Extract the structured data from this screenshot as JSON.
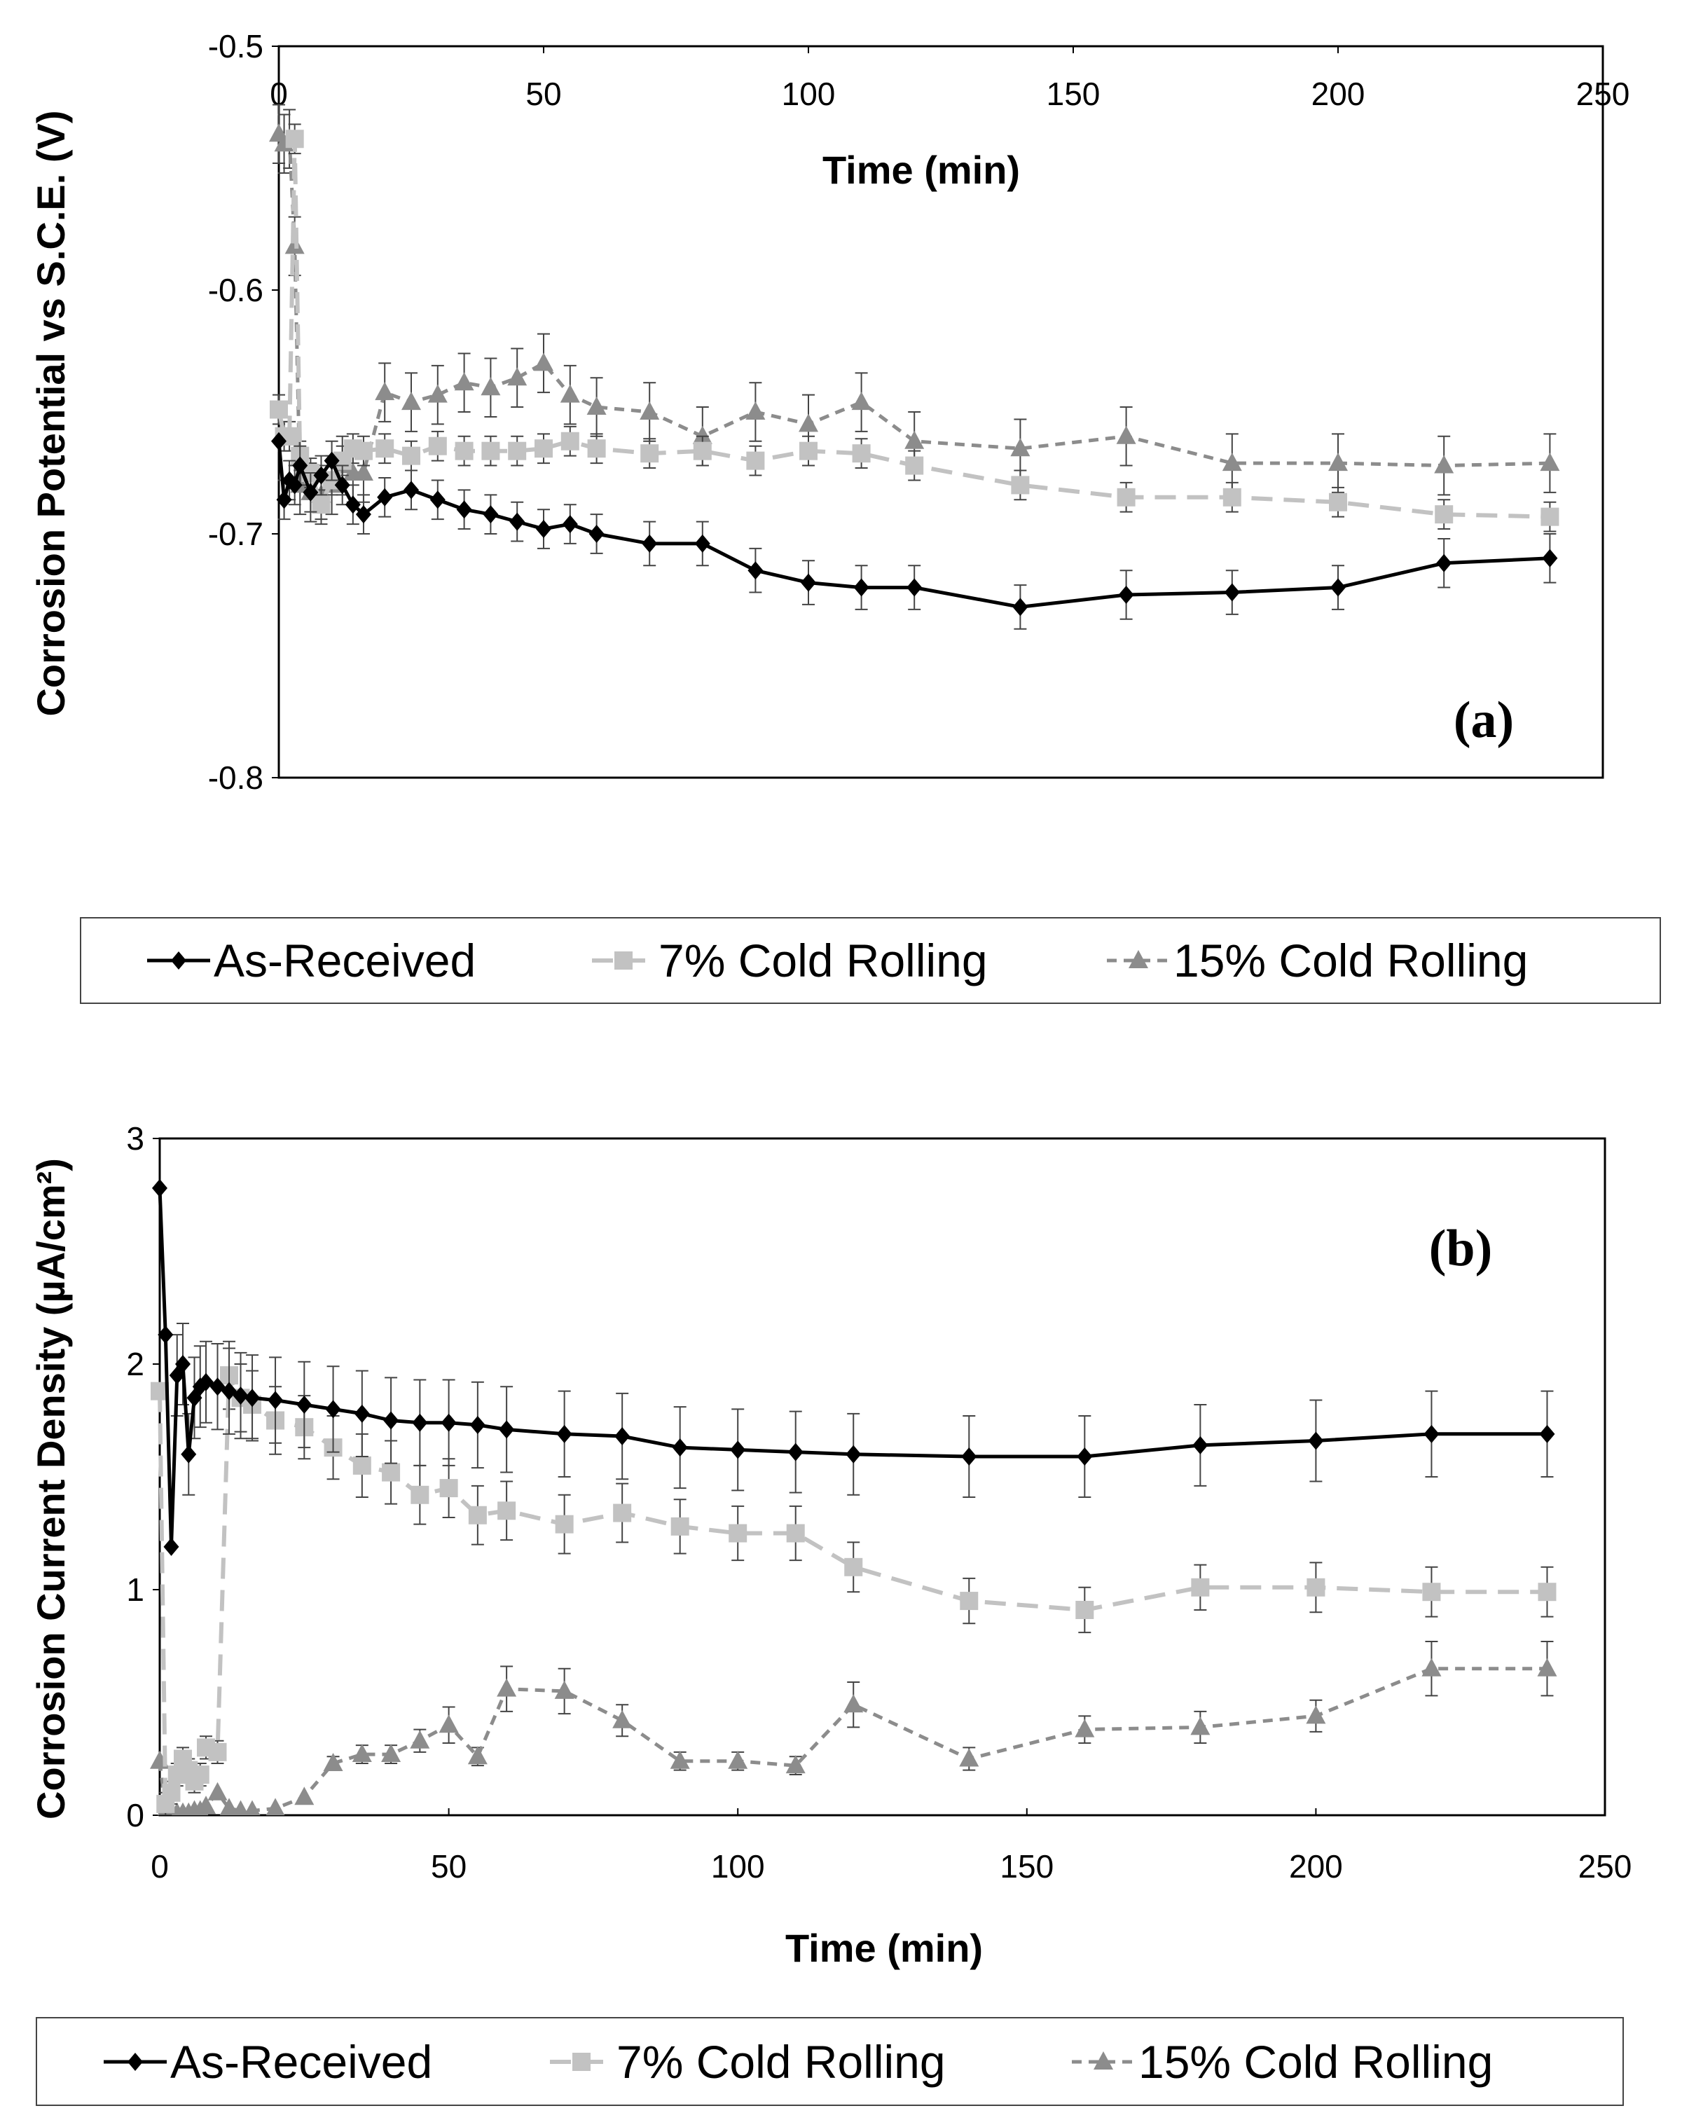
{
  "chart_data": [
    {
      "type": "line",
      "panel_label": "(a)",
      "xlabel": "Time (min)",
      "ylabel": "Corrosion Potential vs S.C.E. (V)",
      "xlim": [
        0,
        250
      ],
      "ylim": [
        -0.8,
        -0.5
      ],
      "x_ticks": [
        0,
        50,
        100,
        150,
        200,
        250
      ],
      "y_ticks": [
        -0.5,
        -0.6,
        -0.7,
        -0.8
      ],
      "x_tick_labels": [
        "0",
        "50",
        "100",
        "150",
        "200",
        "250"
      ],
      "y_tick_labels": [
        "-0.5",
        "-0.6",
        "-0.7",
        "-0.8"
      ],
      "x_axis_position": "top",
      "grid": false,
      "legend_position": "bottom",
      "series": [
        {
          "name": "As-Received",
          "color": "#000000",
          "marker": "diamond",
          "dash": "solid",
          "x": [
            0,
            1,
            2,
            3,
            4,
            6,
            8,
            10,
            12,
            14,
            16,
            20,
            25,
            30,
            35,
            40,
            45,
            50,
            55,
            60,
            70,
            80,
            90,
            100,
            110,
            120,
            140,
            160,
            180,
            200,
            220,
            240
          ],
          "values": [
            -0.662,
            -0.686,
            -0.678,
            -0.68,
            -0.672,
            -0.683,
            -0.676,
            -0.67,
            -0.68,
            -0.688,
            -0.692,
            -0.685,
            -0.682,
            -0.686,
            -0.69,
            -0.692,
            -0.695,
            -0.698,
            -0.696,
            -0.7,
            -0.704,
            -0.704,
            -0.715,
            -0.72,
            -0.722,
            -0.722,
            -0.73,
            -0.725,
            -0.724,
            -0.722,
            -0.712,
            -0.71
          ],
          "error": [
            0,
            0.008,
            0.008,
            0.008,
            0.008,
            0.008,
            0.008,
            0.008,
            0.008,
            0.008,
            0.008,
            0.008,
            0.008,
            0.008,
            0.008,
            0.008,
            0.008,
            0.008,
            0.008,
            0.008,
            0.009,
            0.009,
            0.009,
            0.009,
            0.009,
            0.009,
            0.009,
            0.01,
            0.009,
            0.009,
            0.01,
            0.01
          ]
        },
        {
          "name": "7% Cold Rolling",
          "color": "#c2c2c2",
          "marker": "square",
          "dash": "long-dash",
          "x": [
            0,
            1,
            2,
            3,
            4,
            6,
            8,
            10,
            12,
            14,
            16,
            20,
            25,
            30,
            35,
            40,
            45,
            50,
            55,
            60,
            70,
            80,
            90,
            100,
            110,
            120,
            140,
            160,
            180,
            200,
            220,
            240
          ],
          "values": [
            -0.649,
            -0.66,
            -0.66,
            -0.538,
            -0.668,
            -0.675,
            -0.688,
            -0.678,
            -0.67,
            -0.665,
            -0.666,
            -0.665,
            -0.668,
            -0.664,
            -0.666,
            -0.666,
            -0.666,
            -0.665,
            -0.662,
            -0.665,
            -0.667,
            -0.666,
            -0.67,
            -0.666,
            -0.667,
            -0.672,
            -0.68,
            -0.685,
            -0.685,
            -0.687,
            -0.692,
            -0.693
          ],
          "error": [
            0.006,
            0.006,
            0.006,
            0.006,
            0.006,
            0.006,
            0.006,
            0.006,
            0.006,
            0.006,
            0.006,
            0.006,
            0.006,
            0.006,
            0.006,
            0.006,
            0.006,
            0.006,
            0.006,
            0.006,
            0.006,
            0.006,
            0.006,
            0.006,
            0.006,
            0.006,
            0.006,
            0.006,
            0.006,
            0.006,
            0.006,
            0.006
          ]
        },
        {
          "name": "15% Cold Rolling",
          "color": "#8c8c8c",
          "marker": "triangle",
          "dash": "short-dash",
          "x": [
            0,
            1,
            2,
            3,
            4,
            6,
            8,
            10,
            12,
            14,
            16,
            20,
            25,
            30,
            35,
            40,
            45,
            50,
            55,
            60,
            70,
            80,
            90,
            100,
            110,
            120,
            140,
            160,
            180,
            200,
            220,
            240
          ],
          "values": [
            -0.536,
            -0.54,
            -0.538,
            -0.582,
            -0.68,
            -0.683,
            -0.684,
            -0.68,
            -0.672,
            -0.675,
            -0.675,
            -0.642,
            -0.646,
            -0.643,
            -0.638,
            -0.64,
            -0.636,
            -0.63,
            -0.643,
            -0.648,
            -0.65,
            -0.66,
            -0.65,
            -0.655,
            -0.646,
            -0.662,
            -0.665,
            -0.66,
            -0.671,
            -0.671,
            -0.672,
            -0.671
          ],
          "error": [
            0.012,
            0.012,
            0.012,
            0.012,
            0.012,
            0.012,
            0.012,
            0.012,
            0.012,
            0.012,
            0.012,
            0.012,
            0.012,
            0.012,
            0.012,
            0.012,
            0.012,
            0.012,
            0.012,
            0.012,
            0.012,
            0.012,
            0.012,
            0.012,
            0.012,
            0.012,
            0.012,
            0.012,
            0.012,
            0.012,
            0.012,
            0.012
          ]
        }
      ]
    },
    {
      "type": "line",
      "panel_label": "(b)",
      "xlabel": "Time (min)",
      "ylabel": "Corrosion Current Density (µA/cm²)",
      "xlim": [
        0,
        250
      ],
      "ylim": [
        0,
        3
      ],
      "x_ticks": [
        0,
        50,
        100,
        150,
        200,
        250
      ],
      "y_ticks": [
        0,
        1,
        2,
        3
      ],
      "x_tick_labels": [
        "0",
        "50",
        "100",
        "150",
        "200",
        "250"
      ],
      "y_tick_labels": [
        "0",
        "1",
        "2",
        "3"
      ],
      "x_axis_position": "bottom",
      "grid": false,
      "legend_position": "bottom",
      "series": [
        {
          "name": "As-Received",
          "color": "#000000",
          "marker": "diamond",
          "dash": "solid",
          "x": [
            0,
            1,
            2,
            3,
            4,
            5,
            6,
            7,
            8,
            10,
            12,
            14,
            16,
            20,
            25,
            30,
            35,
            40,
            45,
            50,
            55,
            60,
            70,
            80,
            90,
            100,
            110,
            120,
            140,
            160,
            180,
            200,
            220,
            240
          ],
          "values": [
            2.78,
            2.13,
            1.19,
            1.95,
            2.0,
            1.6,
            1.85,
            1.9,
            1.92,
            1.9,
            1.88,
            1.86,
            1.85,
            1.84,
            1.82,
            1.8,
            1.78,
            1.75,
            1.74,
            1.74,
            1.73,
            1.71,
            1.69,
            1.68,
            1.63,
            1.62,
            1.61,
            1.6,
            1.59,
            1.59,
            1.64,
            1.66,
            1.69,
            1.69
          ],
          "error": [
            0,
            0,
            0,
            0.18,
            0.18,
            0.18,
            0.18,
            0.18,
            0.18,
            0.19,
            0.19,
            0.19,
            0.19,
            0.19,
            0.19,
            0.19,
            0.19,
            0.19,
            0.19,
            0.19,
            0.19,
            0.19,
            0.19,
            0.19,
            0.18,
            0.18,
            0.18,
            0.18,
            0.18,
            0.18,
            0.18,
            0.18,
            0.19,
            0.19
          ]
        },
        {
          "name": "7% Cold Rolling",
          "color": "#c2c2c2",
          "marker": "square",
          "dash": "long-dash",
          "x": [
            0,
            1,
            2,
            3,
            4,
            5,
            6,
            7,
            8,
            10,
            12,
            14,
            16,
            20,
            25,
            30,
            35,
            40,
            45,
            50,
            55,
            60,
            70,
            80,
            90,
            100,
            110,
            120,
            140,
            160,
            180,
            200,
            220,
            240
          ],
          "values": [
            1.88,
            0.05,
            0.1,
            0.18,
            0.25,
            0.2,
            0.15,
            0.18,
            0.3,
            0.28,
            1.95,
            1.85,
            1.82,
            1.75,
            1.72,
            1.63,
            1.55,
            1.52,
            1.42,
            1.45,
            1.33,
            1.35,
            1.29,
            1.34,
            1.28,
            1.25,
            1.25,
            1.1,
            0.95,
            0.91,
            1.01,
            1.01,
            0.99,
            0.99
          ],
          "error": [
            0,
            0.05,
            0.05,
            0.05,
            0.05,
            0.05,
            0.05,
            0.05,
            0.05,
            0.05,
            0.15,
            0.15,
            0.15,
            0.15,
            0.14,
            0.14,
            0.14,
            0.14,
            0.13,
            0.13,
            0.13,
            0.13,
            0.13,
            0.13,
            0.12,
            0.12,
            0.12,
            0.11,
            0.1,
            0.1,
            0.1,
            0.11,
            0.11,
            0.11
          ]
        },
        {
          "name": "15% Cold Rolling",
          "color": "#8c8c8c",
          "marker": "triangle",
          "dash": "short-dash",
          "x": [
            0,
            1,
            2,
            3,
            4,
            5,
            6,
            7,
            8,
            10,
            12,
            14,
            16,
            20,
            25,
            30,
            35,
            40,
            45,
            50,
            55,
            60,
            70,
            80,
            90,
            100,
            110,
            120,
            140,
            160,
            180,
            200,
            220,
            240
          ],
          "values": [
            0.24,
            0.02,
            0.01,
            0.01,
            0.01,
            0.01,
            0.02,
            0.02,
            0.04,
            0.1,
            0.03,
            0.02,
            0.02,
            0.03,
            0.08,
            0.23,
            0.27,
            0.27,
            0.33,
            0.4,
            0.26,
            0.56,
            0.55,
            0.42,
            0.24,
            0.24,
            0.22,
            0.49,
            0.25,
            0.38,
            0.39,
            0.44,
            0.65,
            0.65
          ],
          "error": [
            0,
            0,
            0,
            0,
            0,
            0,
            0,
            0,
            0,
            0,
            0,
            0,
            0,
            0,
            0,
            0.03,
            0.04,
            0.04,
            0.05,
            0.08,
            0.04,
            0.1,
            0.1,
            0.07,
            0.04,
            0.04,
            0.04,
            0.1,
            0.05,
            0.06,
            0.07,
            0.07,
            0.12,
            0.12
          ]
        }
      ]
    }
  ]
}
